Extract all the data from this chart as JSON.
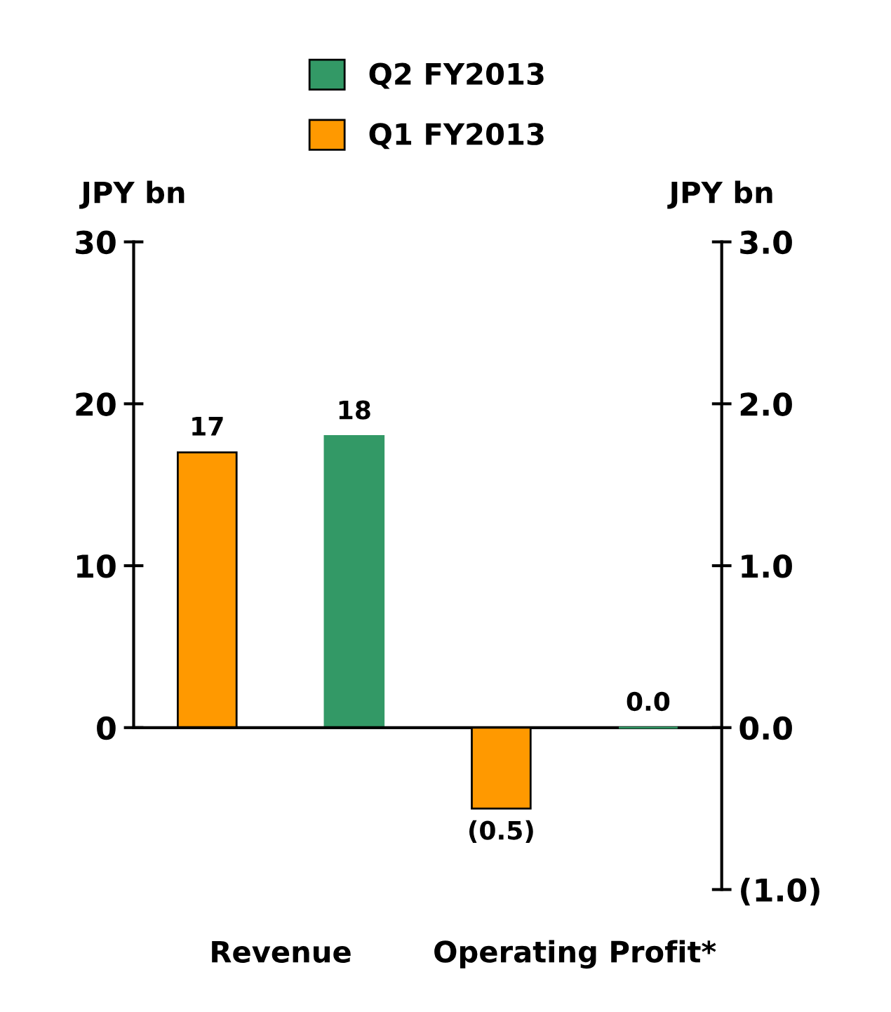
{
  "chart_data": {
    "type": "bar",
    "categories": [
      "Revenue",
      "Operating Profit*"
    ],
    "ylabel": "JPY bn",
    "y2label": "JPY bn",
    "ylim": [
      -10,
      30
    ],
    "yticks": [
      0,
      10,
      20,
      30
    ],
    "y2lim": [
      -1,
      3
    ],
    "y2ticks": [
      {
        "value": 3,
        "label": "3.0"
      },
      {
        "value": 2,
        "label": "2.0"
      },
      {
        "value": 1,
        "label": "1.0"
      },
      {
        "value": 0,
        "label": "0.0"
      },
      {
        "value": -1,
        "label": "(1.0)"
      }
    ],
    "series": [
      {
        "name": "Q1 FY2013",
        "color": "#ff9900",
        "values": [
          17,
          null
        ],
        "value_labels": [
          "17",
          null
        ]
      },
      {
        "name": "Q2 FY2013",
        "color": "#339966",
        "values": [
          18,
          null
        ],
        "value_labels": [
          "18",
          null
        ]
      },
      {
        "color": "#ff9900",
        "axis": "y2",
        "values": [
          null,
          -0.5
        ],
        "value_labels": [
          null,
          "(0.5)"
        ]
      },
      {
        "color": "#339966",
        "axis": "y2",
        "values": [
          null,
          0.0
        ],
        "value_labels": [
          null,
          "0.0"
        ]
      }
    ],
    "legend": "top"
  }
}
